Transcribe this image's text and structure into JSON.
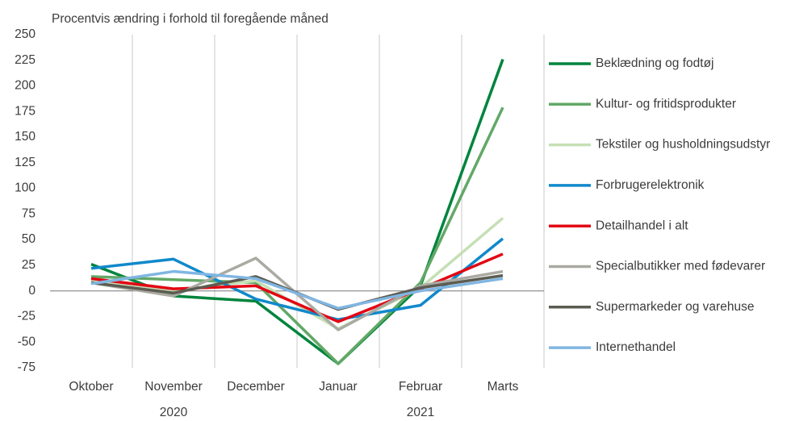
{
  "chart_data": {
    "type": "line",
    "ylabel": "Procentvis ændring i forhold til foregående måned",
    "categories": [
      "Oktober",
      "November",
      "December",
      "Januar",
      "Februar",
      "Marts"
    ],
    "year_labels": [
      "2020",
      "2021"
    ],
    "series": [
      {
        "name": "Beklædning og fodtøj",
        "color": "#00843d",
        "values": [
          26,
          -5,
          -10,
          -71,
          5,
          226
        ]
      },
      {
        "name": "Kultur- og fritidsprodukter",
        "color": "#62a867",
        "values": [
          14,
          11,
          8,
          -71,
          8,
          179
        ]
      },
      {
        "name": "Tekstiler og husholdningsudstyr",
        "color": "#c5e0b5",
        "values": [
          10,
          0,
          10,
          -37,
          3,
          71
        ]
      },
      {
        "name": "Forbrugerelektronik",
        "color": "#1089cb",
        "values": [
          22,
          31,
          -8,
          -28,
          -14,
          51
        ]
      },
      {
        "name": "Detailhandel i alt",
        "color": "#e30613",
        "values": [
          12,
          2,
          5,
          -30,
          2,
          36
        ]
      },
      {
        "name": "Specialbutikker med fødevarer",
        "color": "#aaaaa2",
        "values": [
          8,
          -5,
          32,
          -38,
          5,
          19
        ]
      },
      {
        "name": "Supermarkeder og varehuse",
        "color": "#5c5c52",
        "values": [
          8,
          -2,
          14,
          -18,
          3,
          15
        ]
      },
      {
        "name": "Internethandel",
        "color": "#80b6e2",
        "values": [
          7,
          19,
          12,
          -17,
          0,
          12
        ]
      }
    ],
    "ylim": [
      -75,
      250
    ],
    "yticks": [
      -75,
      -50,
      -25,
      0,
      25,
      50,
      75,
      100,
      125,
      150,
      175,
      200,
      225,
      250
    ],
    "legend": "right"
  }
}
